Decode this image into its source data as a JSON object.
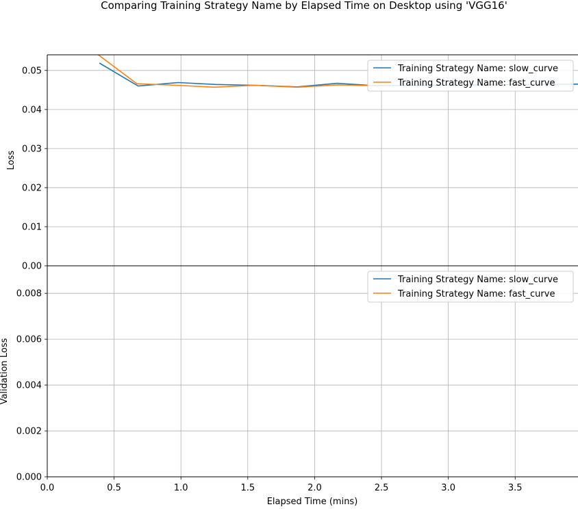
{
  "figure": {
    "title": "Comparing Training Strategy Name by Elapsed Time on Desktop using 'VGG16'",
    "xlabel": "Elapsed Time (mins)"
  },
  "colors": {
    "slow_curve": "#1f77b4",
    "fast_curve": "#ff7f0e",
    "grid": "#b0b0b0",
    "axis": "#000000"
  },
  "chart_data": [
    {
      "type": "line",
      "ylabel": "Loss",
      "xlim": [
        0,
        3.97
      ],
      "ylim": [
        0,
        0.054
      ],
      "xticks": [
        "0.0",
        "0.5",
        "1.0",
        "1.5",
        "2.0",
        "2.5",
        "3.0",
        "3.5"
      ],
      "yticks": [
        "0.00",
        "0.01",
        "0.02",
        "0.03",
        "0.04",
        "0.05"
      ],
      "grid": true,
      "legend_position": "top-right",
      "series": [
        {
          "name": "Training Strategy Name: slow_curve",
          "x": [
            0.39,
            0.68,
            0.98,
            1.26,
            1.55,
            1.87,
            2.17,
            2.45,
            3.97
          ],
          "y": [
            0.0519,
            0.046,
            0.0469,
            0.0464,
            0.0462,
            0.0458,
            0.0467,
            0.0461,
            0.0465
          ]
        },
        {
          "name": "Training Strategy Name: fast_curve",
          "x": [
            0.37,
            0.67,
            0.97,
            1.25,
            1.55,
            1.87,
            2.17,
            2.45
          ],
          "y": [
            0.0543,
            0.0466,
            0.0462,
            0.0457,
            0.0462,
            0.0457,
            0.0463,
            0.0461
          ]
        }
      ]
    },
    {
      "type": "line",
      "ylabel": "Validation Loss",
      "xlim": [
        0,
        3.97
      ],
      "ylim": [
        0,
        0.0092
      ],
      "xticks": [
        "0.0",
        "0.5",
        "1.0",
        "1.5",
        "2.0",
        "2.5",
        "3.0",
        "3.5"
      ],
      "yticks": [
        "0.000",
        "0.002",
        "0.004",
        "0.006",
        "0.008"
      ],
      "grid": true,
      "legend_position": "top-right",
      "series": [
        {
          "name": "Training Strategy Name: slow_curve",
          "x": [],
          "y": []
        },
        {
          "name": "Training Strategy Name: fast_curve",
          "x": [],
          "y": []
        }
      ]
    }
  ]
}
